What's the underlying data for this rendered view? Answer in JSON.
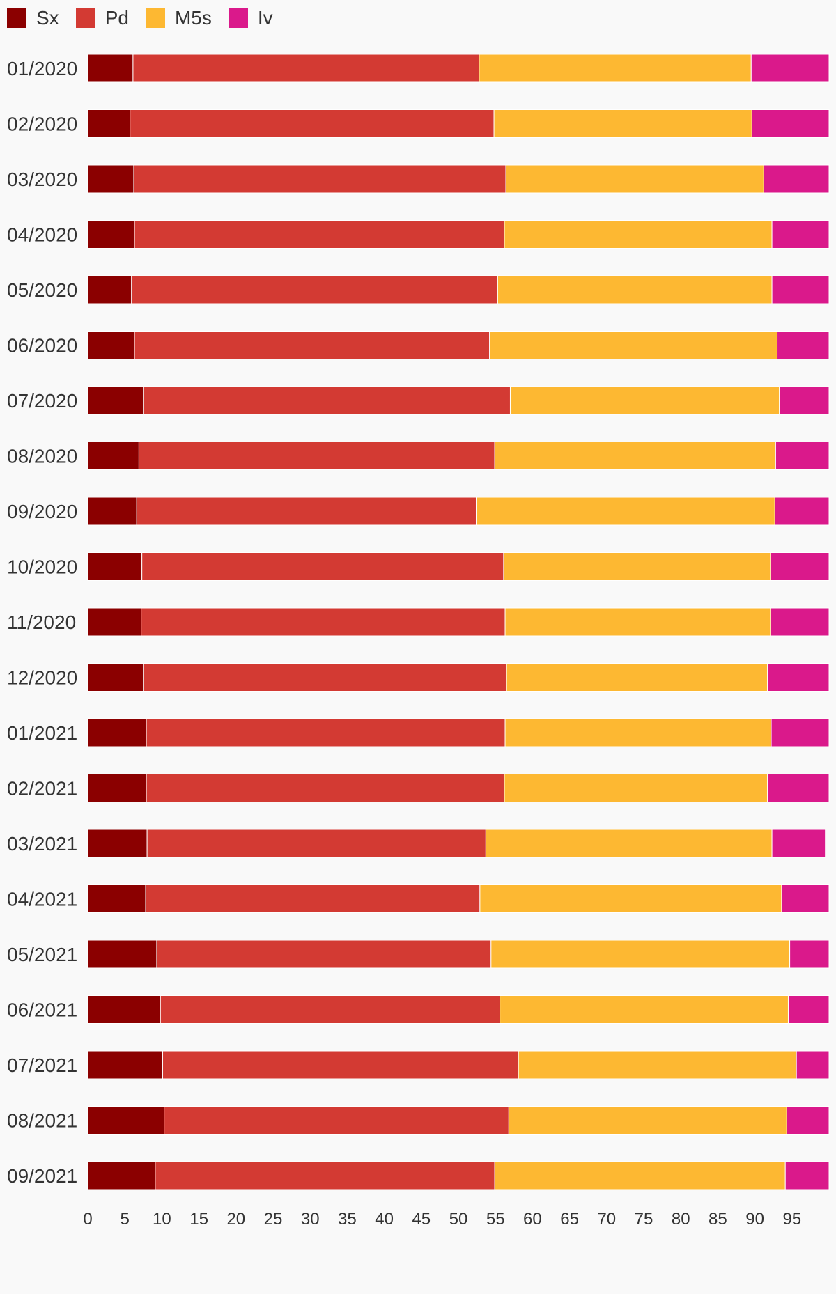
{
  "chart_data": {
    "type": "bar",
    "orientation": "horizontal",
    "stacked": true,
    "categories": [
      "01/2020",
      "02/2020",
      "03/2020",
      "04/2020",
      "05/2020",
      "06/2020",
      "07/2020",
      "08/2020",
      "09/2020",
      "10/2020",
      "11/2020",
      "12/2020",
      "01/2021",
      "02/2021",
      "03/2021",
      "04/2021",
      "05/2021",
      "06/2021",
      "07/2021",
      "08/2021",
      "09/2021"
    ],
    "series": [
      {
        "name": "Sx",
        "color": "#8b0000",
        "values": [
          6.1,
          5.7,
          6.2,
          6.3,
          5.9,
          6.3,
          7.5,
          6.9,
          6.6,
          7.3,
          7.2,
          7.5,
          7.9,
          7.9,
          8.0,
          7.8,
          9.3,
          9.8,
          10.1,
          10.3,
          9.1
        ]
      },
      {
        "name": "Pd",
        "color": "#d33a33",
        "values": [
          46.7,
          49.1,
          50.2,
          49.9,
          49.4,
          47.9,
          49.5,
          48.0,
          45.8,
          48.8,
          49.1,
          49.0,
          48.4,
          48.3,
          45.7,
          45.1,
          45.1,
          45.8,
          48.0,
          46.5,
          45.8
        ]
      },
      {
        "name": "M5s",
        "color": "#fdb832",
        "values": [
          36.7,
          34.8,
          34.8,
          36.1,
          37.0,
          38.8,
          36.3,
          37.9,
          40.3,
          36.0,
          35.8,
          35.2,
          35.9,
          35.5,
          38.6,
          40.7,
          40.3,
          38.9,
          37.5,
          37.5,
          39.2
        ]
      },
      {
        "name": "Iv",
        "color": "#da198b",
        "values": [
          10.5,
          10.4,
          8.8,
          7.7,
          7.7,
          7.0,
          6.7,
          7.2,
          7.3,
          7.9,
          7.9,
          8.3,
          7.8,
          8.3,
          7.2,
          6.4,
          5.3,
          5.5,
          4.4,
          5.7,
          5.9
        ]
      }
    ],
    "x_ticks": [
      0,
      5,
      10,
      15,
      20,
      25,
      30,
      35,
      40,
      45,
      50,
      55,
      60,
      65,
      70,
      75,
      80,
      85,
      90,
      95
    ],
    "xlim": [
      0,
      100
    ],
    "title": "",
    "xlabel": "",
    "ylabel": "",
    "legend_position": "top-left",
    "grid": false
  }
}
